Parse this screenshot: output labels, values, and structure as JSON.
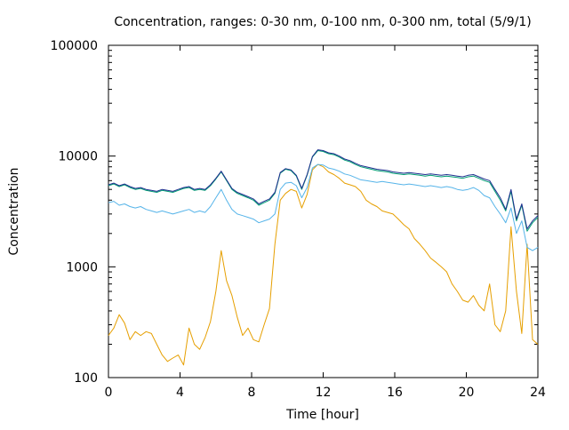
{
  "chart_data": {
    "type": "line",
    "title": "Concentration, ranges: 0-30 nm, 0-100 nm, 0-300 nm, total (5/9/1)",
    "xlabel": "Time [hour]",
    "ylabel": "Concentration",
    "xlim": [
      0,
      24
    ],
    "ylim": [
      100,
      100000
    ],
    "yscale": "log",
    "grid": false,
    "legend": "none",
    "x_ticks": [
      0,
      4,
      8,
      12,
      16,
      20,
      24
    ],
    "x_tick_labels": [
      "0",
      "4",
      "8",
      "12",
      "16",
      "20",
      "24"
    ],
    "y_ticks": [
      100,
      1000,
      10000,
      100000
    ],
    "y_tick_labels": [
      "100",
      "1000",
      "10000",
      "100000"
    ],
    "series": [
      {
        "color": "#e69f00",
        "x": [
          0,
          0.3,
          0.6,
          0.9,
          1.2,
          1.5,
          1.8,
          2.1,
          2.4,
          2.7,
          3.0,
          3.3,
          3.6,
          3.9,
          4.2,
          4.5,
          4.8,
          5.1,
          5.4,
          5.7,
          6.0,
          6.3,
          6.6,
          6.9,
          7.2,
          7.5,
          7.8,
          8.1,
          8.4,
          8.7,
          9.0,
          9.3,
          9.6,
          9.9,
          10.2,
          10.5,
          10.8,
          11.1,
          11.4,
          11.7,
          12.0,
          12.3,
          12.6,
          12.9,
          13.2,
          13.5,
          13.8,
          14.1,
          14.4,
          14.7,
          15.0,
          15.3,
          15.6,
          15.9,
          16.2,
          16.5,
          16.8,
          17.1,
          17.4,
          17.7,
          18.0,
          18.3,
          18.6,
          18.9,
          19.2,
          19.5,
          19.8,
          20.1,
          20.4,
          20.7,
          21.0,
          21.3,
          21.6,
          21.9,
          22.2,
          22.5,
          22.8,
          23.1,
          23.4,
          23.7,
          24.0
        ],
        "values": [
          240,
          280,
          370,
          310,
          220,
          260,
          240,
          260,
          250,
          200,
          160,
          140,
          150,
          160,
          130,
          280,
          200,
          180,
          230,
          320,
          600,
          1400,
          750,
          550,
          350,
          240,
          280,
          220,
          210,
          300,
          420,
          1600,
          4000,
          4600,
          5000,
          4800,
          3400,
          4500,
          7500,
          8400,
          8000,
          7200,
          6800,
          6300,
          5700,
          5500,
          5300,
          4800,
          4000,
          3700,
          3500,
          3200,
          3100,
          3000,
          2700,
          2400,
          2200,
          1800,
          1600,
          1400,
          1200,
          1100,
          1000,
          900,
          700,
          600,
          500,
          480,
          550,
          450,
          400,
          700,
          300,
          260,
          400,
          2300,
          600,
          250,
          1600,
          220,
          200
        ],
        "opacity": 1
      },
      {
        "color": "#56b4e9",
        "x": [
          0,
          0.3,
          0.6,
          0.9,
          1.2,
          1.5,
          1.8,
          2.1,
          2.4,
          2.7,
          3.0,
          3.3,
          3.6,
          3.9,
          4.2,
          4.5,
          4.8,
          5.1,
          5.4,
          5.7,
          6.0,
          6.3,
          6.6,
          6.9,
          7.2,
          7.5,
          7.8,
          8.1,
          8.4,
          8.7,
          9.0,
          9.3,
          9.6,
          9.9,
          10.2,
          10.5,
          10.8,
          11.1,
          11.4,
          11.7,
          12.0,
          12.3,
          12.6,
          12.9,
          13.2,
          13.5,
          13.8,
          14.1,
          14.4,
          14.7,
          15.0,
          15.3,
          15.6,
          15.9,
          16.2,
          16.5,
          16.8,
          17.1,
          17.4,
          17.7,
          18.0,
          18.3,
          18.6,
          18.9,
          19.2,
          19.5,
          19.8,
          20.1,
          20.4,
          20.7,
          21.0,
          21.3,
          21.6,
          21.9,
          22.2,
          22.5,
          22.8,
          23.1,
          23.4,
          23.7,
          24.0
        ],
        "values": [
          3800,
          3900,
          3600,
          3700,
          3500,
          3400,
          3500,
          3300,
          3200,
          3100,
          3200,
          3100,
          3000,
          3100,
          3200,
          3300,
          3100,
          3200,
          3100,
          3500,
          4200,
          5000,
          4000,
          3300,
          3000,
          2900,
          2800,
          2700,
          2500,
          2600,
          2700,
          3000,
          5000,
          5700,
          5800,
          5400,
          4200,
          5200,
          7800,
          8400,
          8300,
          7800,
          7600,
          7300,
          6900,
          6700,
          6400,
          6100,
          6000,
          5900,
          5800,
          5900,
          5800,
          5700,
          5600,
          5500,
          5600,
          5500,
          5400,
          5300,
          5400,
          5300,
          5200,
          5300,
          5200,
          5000,
          4900,
          5000,
          5200,
          4900,
          4400,
          4200,
          3500,
          3000,
          2500,
          3400,
          2000,
          2600,
          1500,
          1400,
          1500
        ],
        "opacity": 1
      },
      {
        "color": "#009e73",
        "x": [
          0,
          0.3,
          0.6,
          0.9,
          1.2,
          1.5,
          1.8,
          2.1,
          2.4,
          2.7,
          3.0,
          3.3,
          3.6,
          3.9,
          4.2,
          4.5,
          4.8,
          5.1,
          5.4,
          5.7,
          6.0,
          6.3,
          6.6,
          6.9,
          7.2,
          7.5,
          7.8,
          8.1,
          8.4,
          8.7,
          9.0,
          9.3,
          9.6,
          9.9,
          10.2,
          10.5,
          10.8,
          11.1,
          11.4,
          11.7,
          12.0,
          12.3,
          12.6,
          12.9,
          13.2,
          13.5,
          13.8,
          14.1,
          14.4,
          14.7,
          15.0,
          15.3,
          15.6,
          15.9,
          16.2,
          16.5,
          16.8,
          17.1,
          17.4,
          17.7,
          18.0,
          18.3,
          18.6,
          18.9,
          19.2,
          19.5,
          19.8,
          20.1,
          20.4,
          20.7,
          21.0,
          21.3,
          21.6,
          21.9,
          22.2,
          22.5,
          22.8,
          23.1,
          23.4,
          23.7,
          24.0
        ],
        "values": [
          5400,
          5600,
          5300,
          5500,
          5200,
          5000,
          5100,
          4900,
          4800,
          4700,
          4900,
          4800,
          4700,
          4900,
          5100,
          5200,
          4900,
          5000,
          4900,
          5400,
          6200,
          7200,
          6000,
          5000,
          4600,
          4400,
          4200,
          4000,
          3600,
          3800,
          4000,
          4600,
          7000,
          7600,
          7400,
          6600,
          5000,
          6700,
          9800,
          11200,
          11000,
          10500,
          10300,
          9800,
          9200,
          8900,
          8400,
          8000,
          7800,
          7600,
          7400,
          7300,
          7200,
          7000,
          6900,
          6800,
          6900,
          6800,
          6700,
          6600,
          6700,
          6600,
          6500,
          6600,
          6500,
          6400,
          6300,
          6500,
          6600,
          6300,
          6000,
          5800,
          4800,
          4000,
          3200,
          4800,
          2600,
          3600,
          2100,
          2500,
          2800
        ],
        "opacity": 1
      },
      {
        "color": "#1f2f8f",
        "x": [
          0,
          0.3,
          0.6,
          0.9,
          1.2,
          1.5,
          1.8,
          2.1,
          2.4,
          2.7,
          3.0,
          3.3,
          3.6,
          3.9,
          4.2,
          4.5,
          4.8,
          5.1,
          5.4,
          5.7,
          6.0,
          6.3,
          6.6,
          6.9,
          7.2,
          7.5,
          7.8,
          8.1,
          8.4,
          8.7,
          9.0,
          9.3,
          9.6,
          9.9,
          10.2,
          10.5,
          10.8,
          11.1,
          11.4,
          11.7,
          12.0,
          12.3,
          12.6,
          12.9,
          13.2,
          13.5,
          13.8,
          14.1,
          14.4,
          14.7,
          15.0,
          15.3,
          15.6,
          15.9,
          16.2,
          16.5,
          16.8,
          17.1,
          17.4,
          17.7,
          18.0,
          18.3,
          18.6,
          18.9,
          19.2,
          19.5,
          19.8,
          20.1,
          20.4,
          20.7,
          21.0,
          21.3,
          21.6,
          21.9,
          22.2,
          22.5,
          22.8,
          23.1,
          23.4,
          23.7,
          24.0
        ],
        "values": [
          5500,
          5700,
          5400,
          5600,
          5300,
          5100,
          5200,
          5000,
          4900,
          4800,
          5000,
          4900,
          4800,
          5000,
          5200,
          5300,
          5000,
          5100,
          5000,
          5500,
          6300,
          7300,
          6100,
          5100,
          4700,
          4500,
          4300,
          4100,
          3700,
          3900,
          4100,
          4700,
          7100,
          7700,
          7500,
          6700,
          5100,
          6800,
          9900,
          11400,
          11200,
          10700,
          10500,
          10000,
          9400,
          9100,
          8600,
          8200,
          8000,
          7800,
          7600,
          7500,
          7400,
          7200,
          7100,
          7000,
          7100,
          7000,
          6900,
          6800,
          6900,
          6800,
          6700,
          6800,
          6700,
          6600,
          6500,
          6700,
          6800,
          6500,
          6200,
          6000,
          5000,
          4200,
          3300,
          5000,
          2700,
          3700,
          2200,
          2600,
          2900
        ],
        "opacity": 1
      }
    ]
  }
}
